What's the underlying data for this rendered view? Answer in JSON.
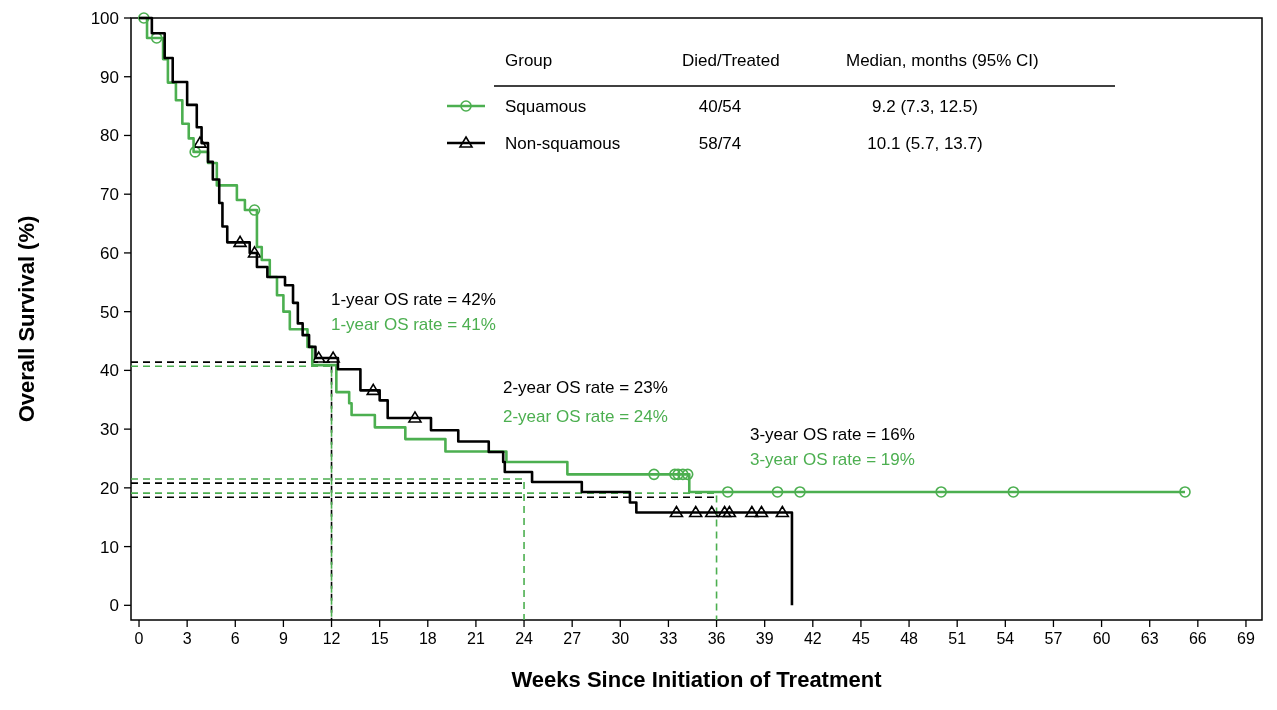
{
  "chart_data": {
    "type": "step",
    "xlabel": "Weeks Since Initiation of Treatment",
    "ylabel": "Overall Survival (%)",
    "legend_title": "Group",
    "legend": "top",
    "grid": false,
    "xlim": [
      -0.5,
      70
    ],
    "xticks": [
      0,
      3,
      6,
      9,
      12,
      15,
      18,
      21,
      24,
      27,
      30,
      33,
      36,
      39,
      42,
      45,
      48,
      51,
      54,
      57,
      60,
      63,
      66,
      69
    ],
    "ylim": [
      -2.5,
      100
    ],
    "yticks": [
      0,
      10,
      20,
      30,
      40,
      50,
      60,
      70,
      80,
      90,
      100
    ],
    "series": [
      {
        "name": "Squamous",
        "color": "#4caf50",
        "x": [
          0,
          0.5,
          1.5,
          1.8,
          2.3,
          2.7,
          3.1,
          3.4,
          4.3,
          4.85,
          6.1,
          6.6,
          7.35,
          7.65,
          8.15,
          8.6,
          9.0,
          9.4,
          10.5,
          10.8,
          12.3,
          13.1,
          13.25,
          14.7,
          16.6,
          19.1,
          22.9,
          26.7,
          34.3,
          65.2
        ],
        "values": [
          100,
          96.6,
          93,
          89,
          86,
          82,
          79.5,
          77.2,
          75.3,
          71.5,
          69,
          67.3,
          61,
          58.8,
          55.9,
          52.8,
          50,
          47,
          44,
          40.9,
          36.3,
          34.4,
          32.4,
          30.3,
          28.3,
          26.2,
          24.4,
          22.3,
          19.3,
          19.3
        ]
      },
      {
        "name": "Non-squamous",
        "color": "#000000",
        "x": [
          0,
          0.8,
          1.6,
          2.1,
          3.0,
          3.6,
          3.9,
          4.3,
          4.6,
          5.0,
          5.2,
          5.5,
          6.9,
          7.35,
          8.0,
          9.1,
          9.6,
          9.9,
          10.2,
          10.6,
          11.0,
          12.4,
          13.8,
          15.0,
          15.5,
          18.2,
          19.9,
          21.8,
          22.7,
          22.8,
          24.5,
          27.6,
          30.6,
          31.0,
          40.7,
          40.7
        ],
        "values": [
          100,
          97.4,
          93.2,
          89.1,
          85.2,
          81.4,
          78.7,
          75.5,
          72.5,
          68.5,
          64.5,
          61.8,
          60,
          57.6,
          55.9,
          54.5,
          51.5,
          48,
          46,
          44,
          42.1,
          40.2,
          36.6,
          34.9,
          31.9,
          29.8,
          27.9,
          26.1,
          24.4,
          22.7,
          21,
          19.3,
          17.5,
          15.8,
          15.8,
          0
        ]
      },
      {
        "type": "scatter",
        "color": "#4caf50",
        "marker": "circle",
        "x": [
          0.3,
          1.1,
          3.5,
          7.2,
          32.1,
          33.4,
          33.6,
          33.9,
          34.2,
          36.7,
          39.8,
          41.2,
          50.0,
          54.5,
          65.2
        ],
        "values": [
          100,
          96.6,
          77.2,
          67.3,
          22.3,
          22.3,
          22.3,
          22.3,
          22.3,
          19.3,
          19.3,
          19.3,
          19.3,
          19.3,
          19.3
        ]
      },
      {
        "type": "scatter",
        "color": "#000000",
        "marker": "triangle",
        "x": [
          3.8,
          6.3,
          7.2,
          11.2,
          12.1,
          14.6,
          17.2,
          33.5,
          34.7,
          35.7,
          36.5,
          36.8,
          38.2,
          38.8,
          40.1
        ],
        "values": [
          78.7,
          61.8,
          60,
          42.1,
          42.1,
          36.6,
          31.9,
          15.8,
          15.8,
          15.8,
          15.8,
          15.8,
          15.8,
          15.8,
          15.8
        ]
      },
      {
        "type": "line",
        "color": "#000000",
        "line_style": "dashed",
        "x": [
          -0.5,
          12,
          12
        ],
        "values": [
          41.4,
          41.4,
          -2.5
        ]
      },
      {
        "type": "line",
        "color": "#4caf50",
        "line_style": "dashed",
        "x": [
          -0.5,
          12,
          12
        ],
        "values": [
          40.7,
          40.7,
          -2.5
        ]
      },
      {
        "type": "line",
        "color": "#000000",
        "line_style": "dashed",
        "x": [
          -0.5,
          24
        ],
        "values": [
          20.8,
          20.8
        ]
      },
      {
        "type": "line",
        "color": "#4caf50",
        "line_style": "dashed",
        "x": [
          -0.5,
          24,
          24
        ],
        "values": [
          21.5,
          21.5,
          -2.5
        ]
      },
      {
        "type": "line",
        "color": "#000000",
        "line_style": "dashed",
        "x": [
          -0.5,
          36
        ],
        "values": [
          18.4,
          18.4
        ]
      },
      {
        "type": "line",
        "color": "#4caf50",
        "line_style": "dashed",
        "x": [
          -0.5,
          36,
          36
        ],
        "values": [
          19.1,
          19.1,
          -2.5
        ]
      }
    ],
    "annotations": [
      "Died/Treated",
      "Median, months (95% CI)",
      "40/54",
      "9.2 (7.3, 12.5)",
      "58/74",
      "10.1 (5.7, 13.7)",
      "1-year OS rate = 42%",
      "1-year OS rate = 41%",
      "2-year OS rate = 23%",
      "2-year OS rate = 24%",
      "3-year OS rate = 16%",
      "3-year OS rate = 19%"
    ]
  }
}
